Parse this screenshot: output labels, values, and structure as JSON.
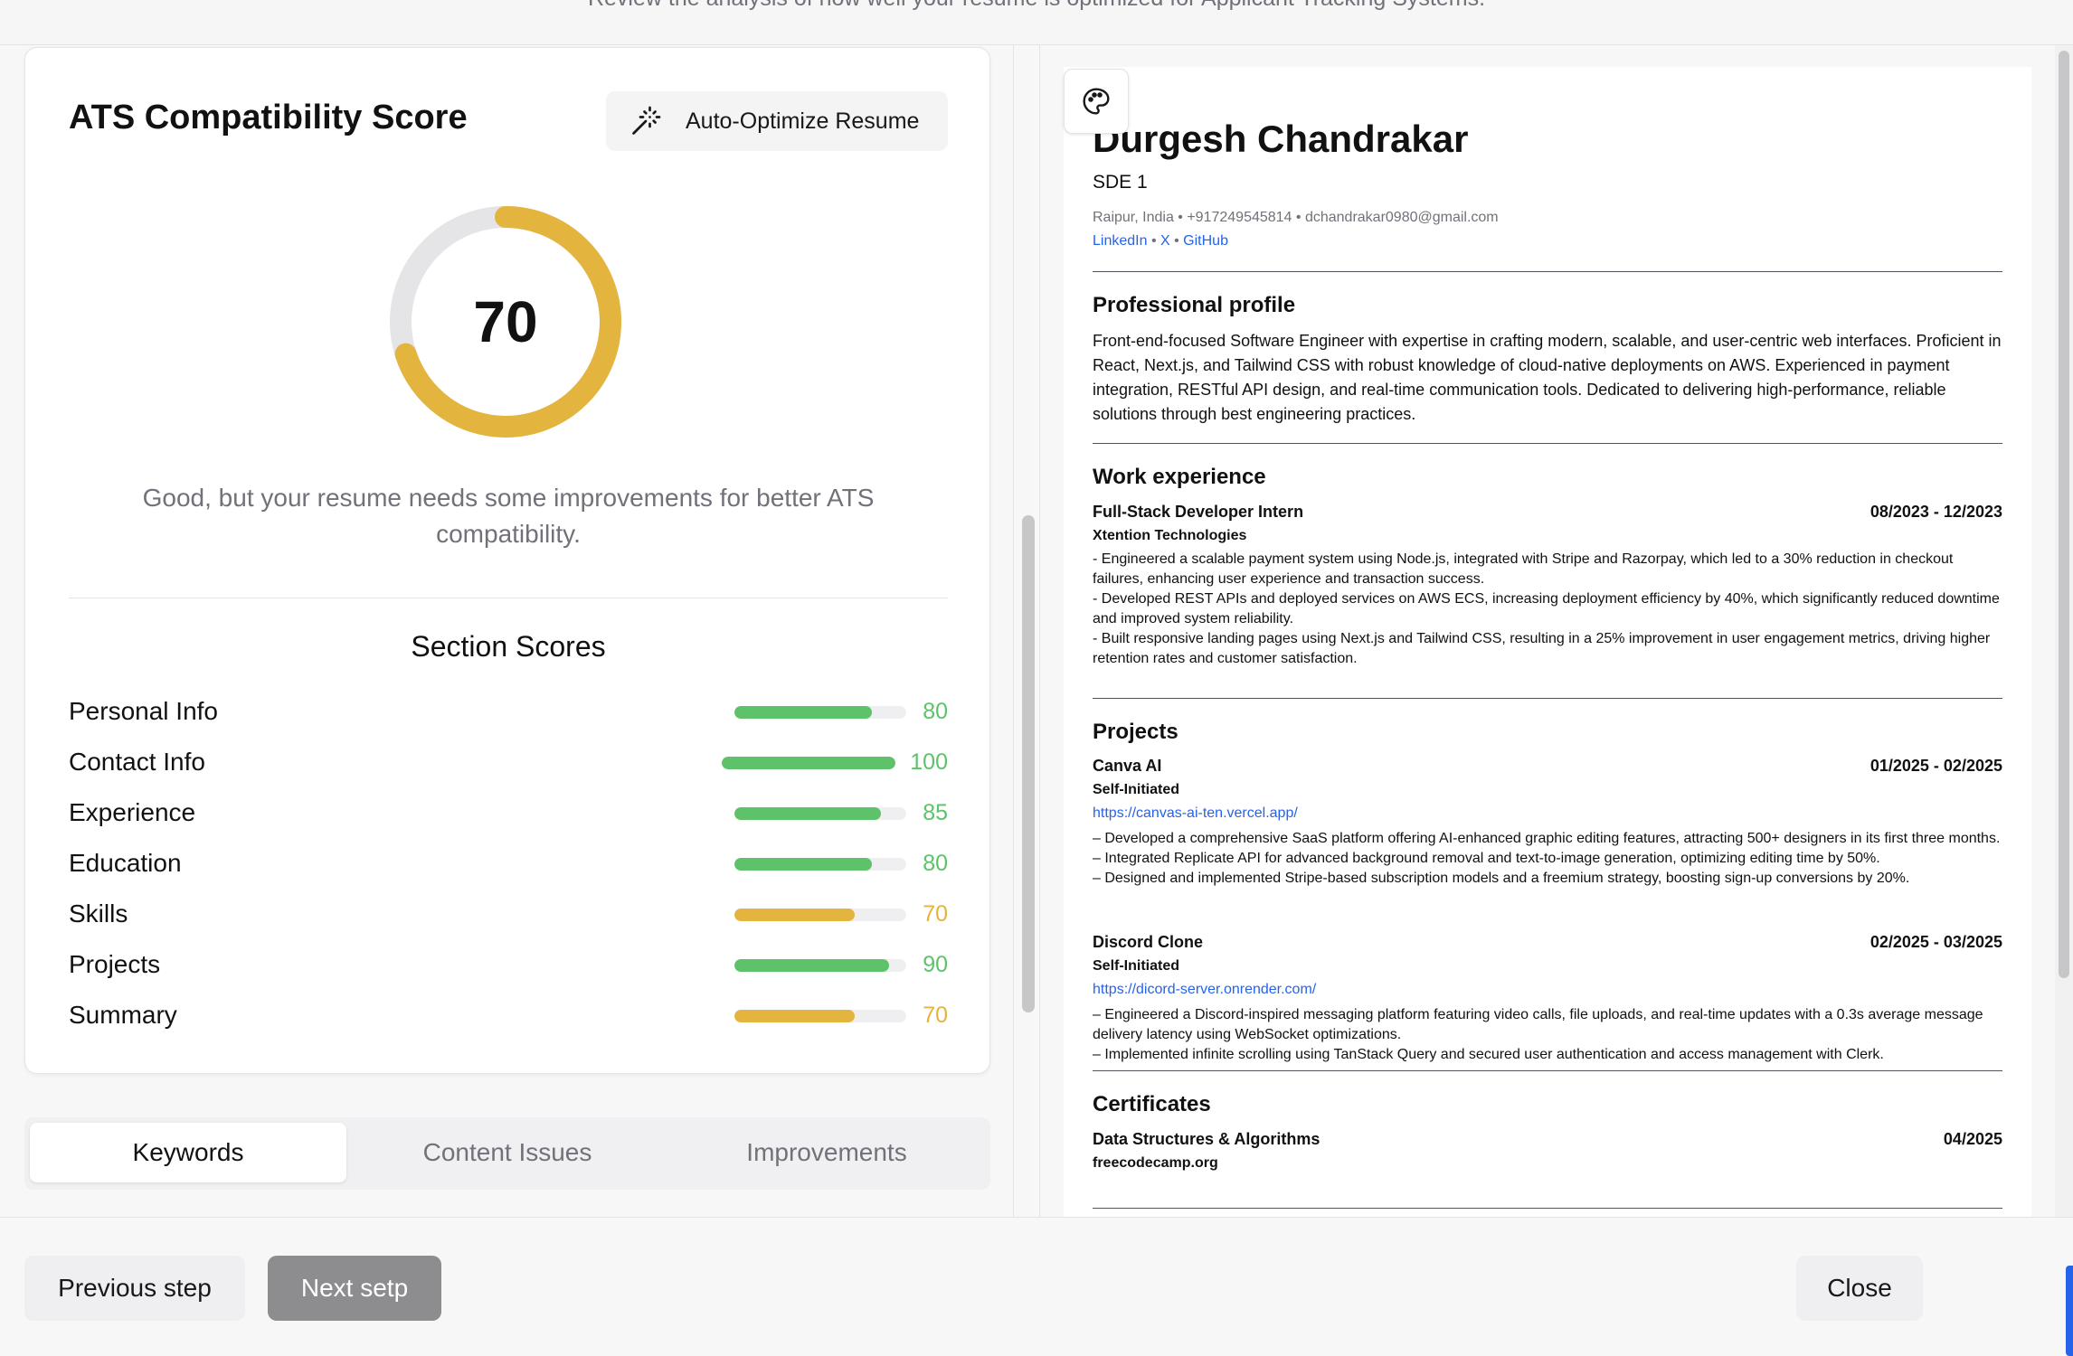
{
  "topbar": {
    "text": "Review the analysis of how well your resume is optimized for Applicant Tracking Systems."
  },
  "ats": {
    "title": "ATS Compatibility Score",
    "optimize_label": "Auto-Optimize Resume",
    "score": "70",
    "score_fraction": 0.7,
    "message": "Good, but your resume needs some improvements for better ATS compatibility.",
    "section_title": "Section Scores",
    "colors": {
      "good": "#5ec26a",
      "warn": "#e4b53e",
      "track": "#e5e5e8"
    },
    "sections": [
      {
        "label": "Personal Info",
        "value": "80",
        "fraction": 0.8,
        "level": "good"
      },
      {
        "label": "Contact Info",
        "value": "100",
        "fraction": 1.0,
        "level": "good"
      },
      {
        "label": "Experience",
        "value": "85",
        "fraction": 0.85,
        "level": "good"
      },
      {
        "label": "Education",
        "value": "80",
        "fraction": 0.8,
        "level": "good"
      },
      {
        "label": "Skills",
        "value": "70",
        "fraction": 0.7,
        "level": "warn"
      },
      {
        "label": "Projects",
        "value": "90",
        "fraction": 0.9,
        "level": "good"
      },
      {
        "label": "Summary",
        "value": "70",
        "fraction": 0.7,
        "level": "warn"
      }
    ]
  },
  "tabs": [
    {
      "label": "Keywords",
      "active": true
    },
    {
      "label": "Content Issues",
      "active": false
    },
    {
      "label": "Improvements",
      "active": false
    }
  ],
  "resume": {
    "name": "Durgesh Chandrakar",
    "role": "SDE 1",
    "contact": "Raipur, India • +917249545814 • dchandrakar0980@gmail.com",
    "links": [
      "LinkedIn",
      "X",
      "GitHub"
    ],
    "link_sep": " • ",
    "profile_heading": "Professional profile",
    "profile_text": "Front-end-focused Software Engineer with expertise in crafting modern, scalable, and user-centric web interfaces. Proficient in React, Next.js, and Tailwind CSS with robust knowledge of cloud-native deployments on AWS. Experienced in payment integration, RESTful API design, and real-time communication tools. Dedicated to delivering high-performance, reliable solutions through best engineering practices.",
    "work_heading": "Work experience",
    "work": {
      "title": "Full-Stack Developer Intern",
      "dates": "08/2023 - 12/2023",
      "company": "Xtention Technologies",
      "bullets": [
        "- Engineered a scalable payment system using Node.js, integrated with Stripe and Razorpay, which led to a 30% reduction in checkout failures, enhancing user experience and transaction success.",
        "- Developed REST APIs and deployed services on AWS ECS, increasing deployment efficiency by 40%, which significantly reduced downtime and improved system reliability.",
        "- Built responsive landing pages using Next.js and Tailwind CSS, resulting in a 25% improvement in user engagement metrics, driving higher retention rates and customer satisfaction."
      ]
    },
    "projects_heading": "Projects",
    "projects": [
      {
        "title": "Canva AI",
        "dates": "01/2025 - 02/2025",
        "sub": "Self-Initiated",
        "url": "https://canvas-ai-ten.vercel.app/",
        "bullets": [
          "– Developed a comprehensive SaaS platform offering AI-enhanced graphic editing features, attracting 500+ designers in its first three months.",
          "– Integrated Replicate API for advanced background removal and text-to-image generation, optimizing editing time by 50%.",
          "– Designed and implemented Stripe-based subscription models and a freemium strategy, boosting sign-up conversions by 20%."
        ]
      },
      {
        "title": "Discord Clone",
        "dates": "02/2025 - 03/2025",
        "sub": "Self-Initiated",
        "url": "https://dicord-server.onrender.com/",
        "bullets": [
          "– Engineered a Discord-inspired messaging platform featuring video calls, file uploads, and real-time updates with a 0.3s average message delivery latency using WebSocket optimizations.",
          "– Implemented infinite scrolling using TanStack Query and secured user authentication and access management with Clerk."
        ]
      }
    ],
    "certs_heading": "Certificates",
    "cert": {
      "title": "Data Structures & Algorithms",
      "date": "04/2025",
      "issuer": "freecodecamp.org"
    }
  },
  "footer": {
    "prev_label": "Previous step",
    "next_label": "Next setp",
    "close_label": "Close"
  },
  "icons": {
    "wand": "magic-wand-icon",
    "palette": "palette-icon"
  }
}
